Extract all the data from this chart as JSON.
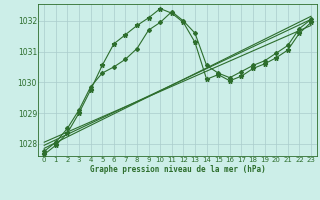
{
  "background_color": "#cceee8",
  "plot_bg_color": "#cceee8",
  "grid_color": "#aacccc",
  "line_color": "#2d6e2d",
  "title": "Graphe pression niveau de la mer (hPa)",
  "xlim": [
    -0.5,
    23.5
  ],
  "ylim": [
    1027.6,
    1032.55
  ],
  "yticks": [
    1028,
    1029,
    1030,
    1031,
    1032
  ],
  "xticks": [
    0,
    1,
    2,
    3,
    4,
    5,
    6,
    7,
    8,
    9,
    10,
    11,
    12,
    13,
    14,
    15,
    16,
    17,
    18,
    19,
    20,
    21,
    22,
    23
  ],
  "series": [
    {
      "x": [
        0,
        1,
        2,
        3,
        4,
        5,
        6,
        7,
        8,
        9,
        10,
        11,
        12,
        13,
        14,
        15,
        16,
        17,
        18,
        19,
        20,
        21,
        22,
        23
      ],
      "y": [
        1027.75,
        1028.05,
        1028.5,
        1029.1,
        1029.85,
        1030.3,
        1030.5,
        1030.75,
        1031.1,
        1031.7,
        1031.95,
        1032.3,
        1032.0,
        1031.6,
        1030.55,
        1030.3,
        1030.15,
        1030.35,
        1030.55,
        1030.7,
        1030.95,
        1031.2,
        1031.75,
        1032.05
      ],
      "marker": "D",
      "markersize": 2.0,
      "linewidth": 0.8
    },
    {
      "x": [
        0,
        1,
        2,
        3,
        4,
        5,
        6,
        7,
        8,
        9,
        10,
        11,
        12,
        13,
        14,
        15,
        16,
        17,
        18,
        19,
        20,
        21,
        22,
        23
      ],
      "y": [
        1027.65,
        1027.95,
        1028.35,
        1029.0,
        1029.75,
        1030.55,
        1031.25,
        1031.55,
        1031.85,
        1032.1,
        1032.4,
        1032.25,
        1031.95,
        1031.3,
        1030.1,
        1030.25,
        1030.05,
        1030.2,
        1030.45,
        1030.6,
        1030.8,
        1031.05,
        1031.6,
        1031.95
      ],
      "marker": "*",
      "markersize": 3.5,
      "linewidth": 0.8
    },
    {
      "x": [
        0,
        23
      ],
      "y": [
        1027.95,
        1032.05
      ],
      "marker": null,
      "linewidth": 0.8
    },
    {
      "x": [
        0,
        23
      ],
      "y": [
        1028.05,
        1031.85
      ],
      "marker": null,
      "linewidth": 0.8
    },
    {
      "x": [
        0,
        23
      ],
      "y": [
        1027.85,
        1032.15
      ],
      "marker": null,
      "linewidth": 0.8
    }
  ]
}
